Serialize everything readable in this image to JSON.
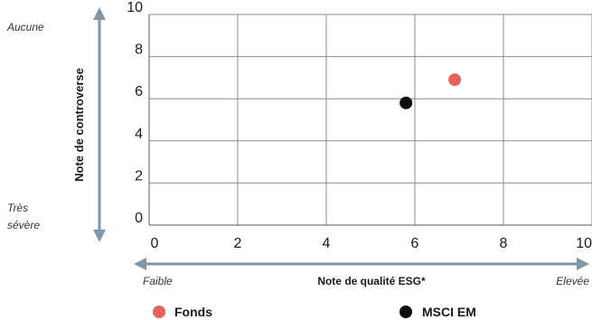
{
  "chart_data": {
    "type": "scatter",
    "title": "",
    "xlabel": "Note de qualité ESG*",
    "ylabel": "Note de controverse",
    "xlim": [
      0,
      10
    ],
    "ylim": [
      0,
      10
    ],
    "x_ticks": [
      "0",
      "2",
      "4",
      "6",
      "8",
      "10"
    ],
    "y_ticks": [
      "0",
      "2",
      "4",
      "6",
      "8",
      "10"
    ],
    "x_range_low_label": "Faible",
    "x_range_high_label": "Elevée",
    "y_range_high_label": "Aucune",
    "y_range_low_label_line1": "Très",
    "y_range_low_label_line2": "sévère",
    "grid": true,
    "legend_position": "bottom",
    "series": [
      {
        "name": "Fonds",
        "color": "#e5645a",
        "points": [
          {
            "x": 6.9,
            "y": 6.9
          }
        ]
      },
      {
        "name": "MSCI EM",
        "color": "#0d0d0d",
        "points": [
          {
            "x": 5.8,
            "y": 5.8
          }
        ]
      }
    ],
    "colors": {
      "arrow": "#7f97a6",
      "grid": "#8c8c8c",
      "axis": "#5a5a5a"
    }
  }
}
